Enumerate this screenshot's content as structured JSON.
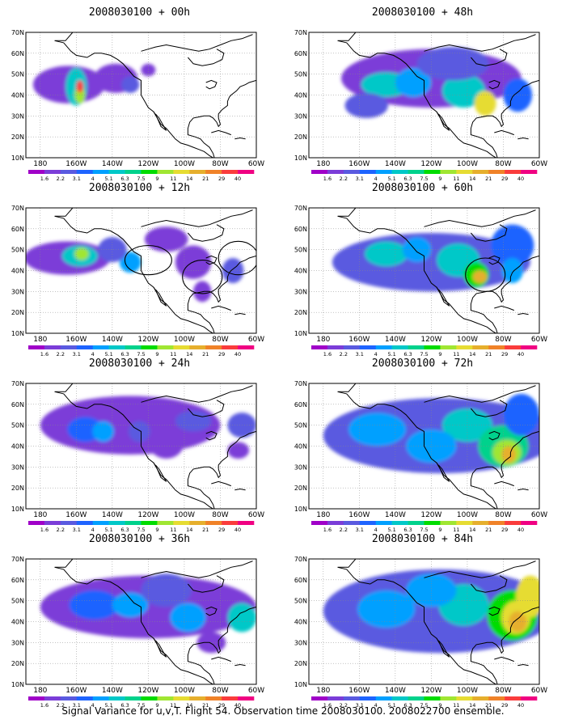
{
  "panels": [
    {
      "title": "2008030100 + 00h",
      "hours": 0
    },
    {
      "title": "2008030100 + 48h",
      "hours": 48
    },
    {
      "title": "2008030100 + 12h",
      "hours": 12
    },
    {
      "title": "2008030100 + 60h",
      "hours": 60
    },
    {
      "title": "2008030100 + 24h",
      "hours": 24
    },
    {
      "title": "2008030100 + 72h",
      "hours": 72
    },
    {
      "title": "2008030100 + 36h",
      "hours": 36
    },
    {
      "title": "2008030100 + 84h",
      "hours": 84
    }
  ],
  "axes": {
    "lat_labels": [
      "70N",
      "60N",
      "50N",
      "40N",
      "30N",
      "20N",
      "10N"
    ],
    "lon_labels": [
      "180",
      "160W",
      "140W",
      "120W",
      "100W",
      "80W",
      "60W"
    ]
  },
  "colorbar": {
    "labels": [
      "1.6",
      "2.2",
      "3.1",
      "4",
      "5.1",
      "6.3",
      "7.5",
      "9",
      "11",
      "14",
      "21",
      "29",
      "40"
    ],
    "colors": [
      "#ffffff",
      "#a000c8",
      "#7b3dd8",
      "#5a5ae0",
      "#1e64ff",
      "#00a0ff",
      "#00c8c8",
      "#00d28c",
      "#00dc00",
      "#a0e632",
      "#e6dc32",
      "#e6af2d",
      "#f08228",
      "#fa3c3c",
      "#f00082"
    ]
  },
  "footer": "Signal Variance for u,v,T. Flight 54. Observation time 2008030100. 2008022700 ensemble."
}
